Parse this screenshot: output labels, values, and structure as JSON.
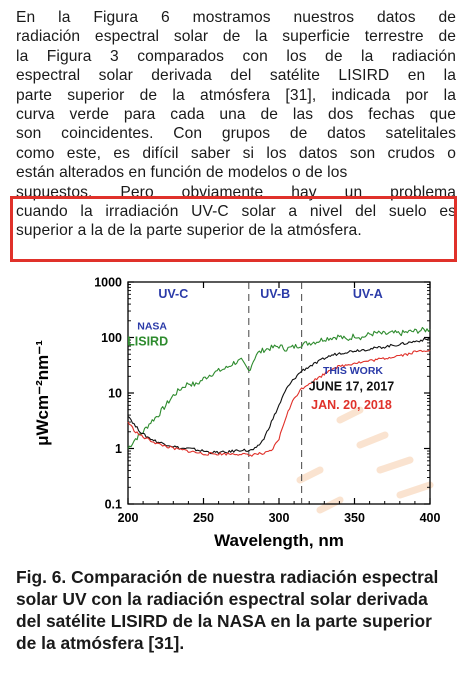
{
  "paragraph_lines": [
    "En la Figura 6 mostramos nuestros datos de",
    "radiación espectral solar de la superficie terrestre de",
    "la Figura 3 comparados con los de la radiación",
    "espectral solar derivada del satélite LISIRD en la",
    "parte superior de la atmósfera [31], indicada por la",
    "curva verde para cada una de las dos fechas que",
    "son coincidentes. Con grupos de datos satelitales",
    "como este, es difícil saber si los datos son crudos o",
    "están alterados en función de modelos o de los",
    "supuestos. Pero obviamente hay un problema",
    "cuando la irradiación UV-C solar a nivel del suelo es",
    "superior a la de la parte superior de la atmósfera."
  ],
  "caption": {
    "label": "Fig. 6.",
    "text": "Comparación de nuestra radiación espectral solar UV con la radiación espectral solar derivada del satélite LISIRD de la NASA en la parte superior de la atmósfera [31]."
  },
  "chart_data": {
    "type": "line",
    "xlabel": "Wavelength, nm",
    "ylabel": "μWcm⁻²nm⁻¹",
    "xlim": [
      200,
      400
    ],
    "ylim": [
      0.1,
      1000
    ],
    "y_scale": "log",
    "x_ticks": [
      "200",
      "250",
      "300",
      "350",
      "400"
    ],
    "y_ticks": [
      "0.1",
      "1",
      "10",
      "100",
      "1000"
    ],
    "bands": [
      {
        "label": "UV-C",
        "from": 200,
        "to": 280
      },
      {
        "label": "UV-B",
        "from": 280,
        "to": 315
      },
      {
        "label": "UV-A",
        "from": 315,
        "to": 400
      }
    ],
    "band_boundaries": [
      280,
      315
    ],
    "annotations": {
      "nasa": "NASA",
      "lisird": "LISIRD",
      "this_work": "THIS WORK",
      "date1": "JUNE 17, 2017",
      "date2": "JAN. 20, 2018"
    },
    "series": [
      {
        "name": "LISIRD",
        "color": "#2e8b2e",
        "x": [
          200,
          205,
          210,
          215,
          220,
          225,
          230,
          235,
          240,
          245,
          250,
          255,
          260,
          265,
          270,
          275,
          280,
          285,
          290,
          295,
          300,
          305,
          310,
          315,
          320,
          325,
          330,
          335,
          340,
          345,
          350,
          355,
          360,
          365,
          370,
          375,
          380,
          385,
          390,
          395,
          400
        ],
        "y": [
          1.0,
          1.5,
          2.0,
          3.0,
          4.0,
          6.0,
          9.0,
          12,
          15,
          14,
          18,
          22,
          25,
          28,
          35,
          38,
          25,
          50,
          60,
          65,
          70,
          62,
          68,
          75,
          80,
          85,
          95,
          100,
          105,
          90,
          110,
          100,
          115,
          120,
          115,
          120,
          118,
          125,
          130,
          135,
          140
        ]
      },
      {
        "name": "JUNE 17, 2017",
        "color": "#111111",
        "x": [
          200,
          205,
          210,
          215,
          220,
          225,
          230,
          235,
          240,
          245,
          250,
          255,
          260,
          265,
          270,
          275,
          280,
          285,
          290,
          295,
          300,
          305,
          310,
          315,
          320,
          325,
          330,
          335,
          340,
          345,
          350,
          355,
          360,
          365,
          370,
          375,
          380,
          385,
          390,
          395,
          400
        ],
        "y": [
          4.0,
          2.5,
          1.8,
          1.5,
          1.3,
          1.2,
          1.1,
          1.0,
          1.0,
          0.95,
          0.9,
          0.85,
          0.85,
          0.85,
          0.9,
          0.95,
          0.9,
          1.0,
          1.5,
          3.0,
          6.0,
          12,
          18,
          25,
          30,
          35,
          42,
          48,
          52,
          55,
          58,
          60,
          62,
          65,
          68,
          72,
          75,
          80,
          85,
          90,
          95
        ]
      },
      {
        "name": "JAN. 20, 2018",
        "color": "#e0312a",
        "x": [
          200,
          205,
          210,
          215,
          220,
          225,
          230,
          235,
          240,
          245,
          250,
          255,
          260,
          265,
          270,
          275,
          280,
          285,
          290,
          295,
          300,
          305,
          310,
          315,
          320,
          325,
          330,
          335,
          340,
          345,
          350,
          355,
          360,
          365,
          370,
          375,
          380,
          385,
          390,
          395,
          400
        ],
        "y": [
          3.0,
          2.0,
          1.6,
          1.4,
          1.2,
          1.1,
          1.0,
          0.95,
          0.9,
          0.85,
          0.8,
          0.8,
          0.8,
          0.8,
          0.8,
          0.8,
          0.75,
          0.8,
          0.8,
          0.9,
          1.5,
          4.0,
          8.0,
          12,
          15,
          18,
          22,
          28,
          30,
          32,
          35,
          36,
          38,
          40,
          42,
          45,
          48,
          50,
          55,
          58,
          60
        ]
      }
    ]
  }
}
